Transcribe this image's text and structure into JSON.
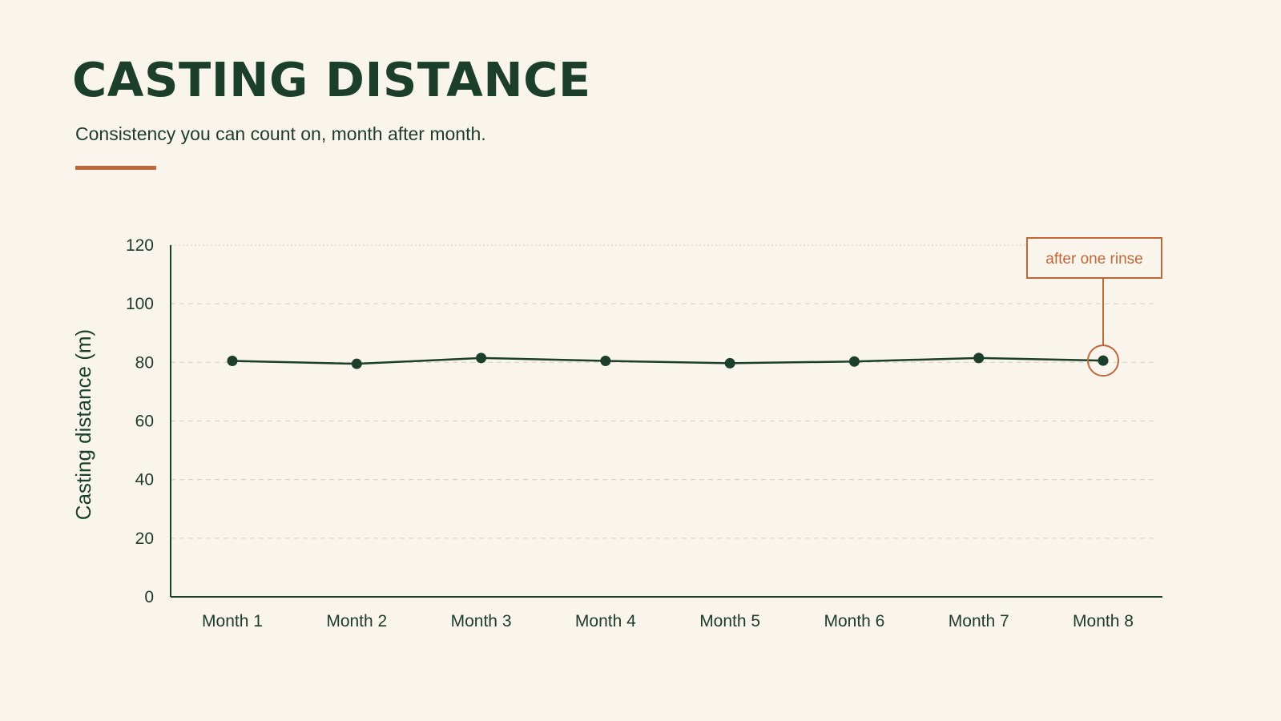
{
  "slide": {
    "title": "CASTING DISTANCE",
    "subtitle": "Consistency you can count on, month after month."
  },
  "colors": {
    "background": "#faf5ec",
    "primary": "#1b3f2b",
    "accent": "#c0673a",
    "grid": "#d9d4c8"
  },
  "chart_data": {
    "type": "line",
    "title": "",
    "xlabel": "",
    "ylabel": "Casting distance (m)",
    "categories": [
      "Month 1",
      "Month 2",
      "Month 3",
      "Month 4",
      "Month 5",
      "Month 6",
      "Month 7",
      "Month 8"
    ],
    "series": [
      {
        "values": [
          80.5,
          79.5,
          81.5,
          80.5,
          79.7,
          80.3,
          81.5,
          80.6
        ],
        "color": "#1b3f2b"
      }
    ],
    "ylim": [
      0,
      120
    ],
    "yticks": [
      "0",
      "20",
      "40",
      "60",
      "80",
      "100",
      "120"
    ],
    "grid": true,
    "legend": "none",
    "annotations": [
      {
        "category": "Month 8",
        "text": "after one rinse"
      }
    ]
  }
}
